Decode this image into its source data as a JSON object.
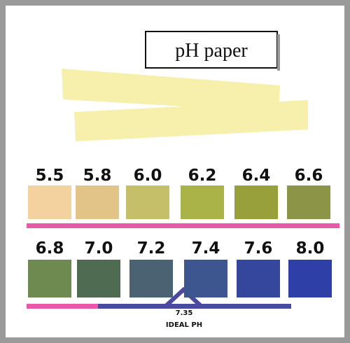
{
  "title": "pH paper",
  "rows": [
    {
      "swatches": [
        {
          "label": "5.5",
          "color": "#f3d2a0"
        },
        {
          "label": "5.8",
          "color": "#e3c488"
        },
        {
          "label": "6.0",
          "color": "#c6bf6a"
        },
        {
          "label": "6.2",
          "color": "#a9b347"
        },
        {
          "label": "6.4",
          "color": "#98a03c"
        },
        {
          "label": "6.6",
          "color": "#8c9448"
        }
      ]
    },
    {
      "swatches": [
        {
          "label": "6.8",
          "color": "#6f8a50"
        },
        {
          "label": "7.0",
          "color": "#4f6b52"
        },
        {
          "label": "7.2",
          "color": "#4b6272"
        },
        {
          "label": "7.4",
          "color": "#3e5690"
        },
        {
          "label": "7.6",
          "color": "#35479c"
        },
        {
          "label": "8.0",
          "color": "#2f3fa8"
        }
      ]
    }
  ],
  "ideal": {
    "value": "7.35",
    "label": "IDEAL PH"
  }
}
